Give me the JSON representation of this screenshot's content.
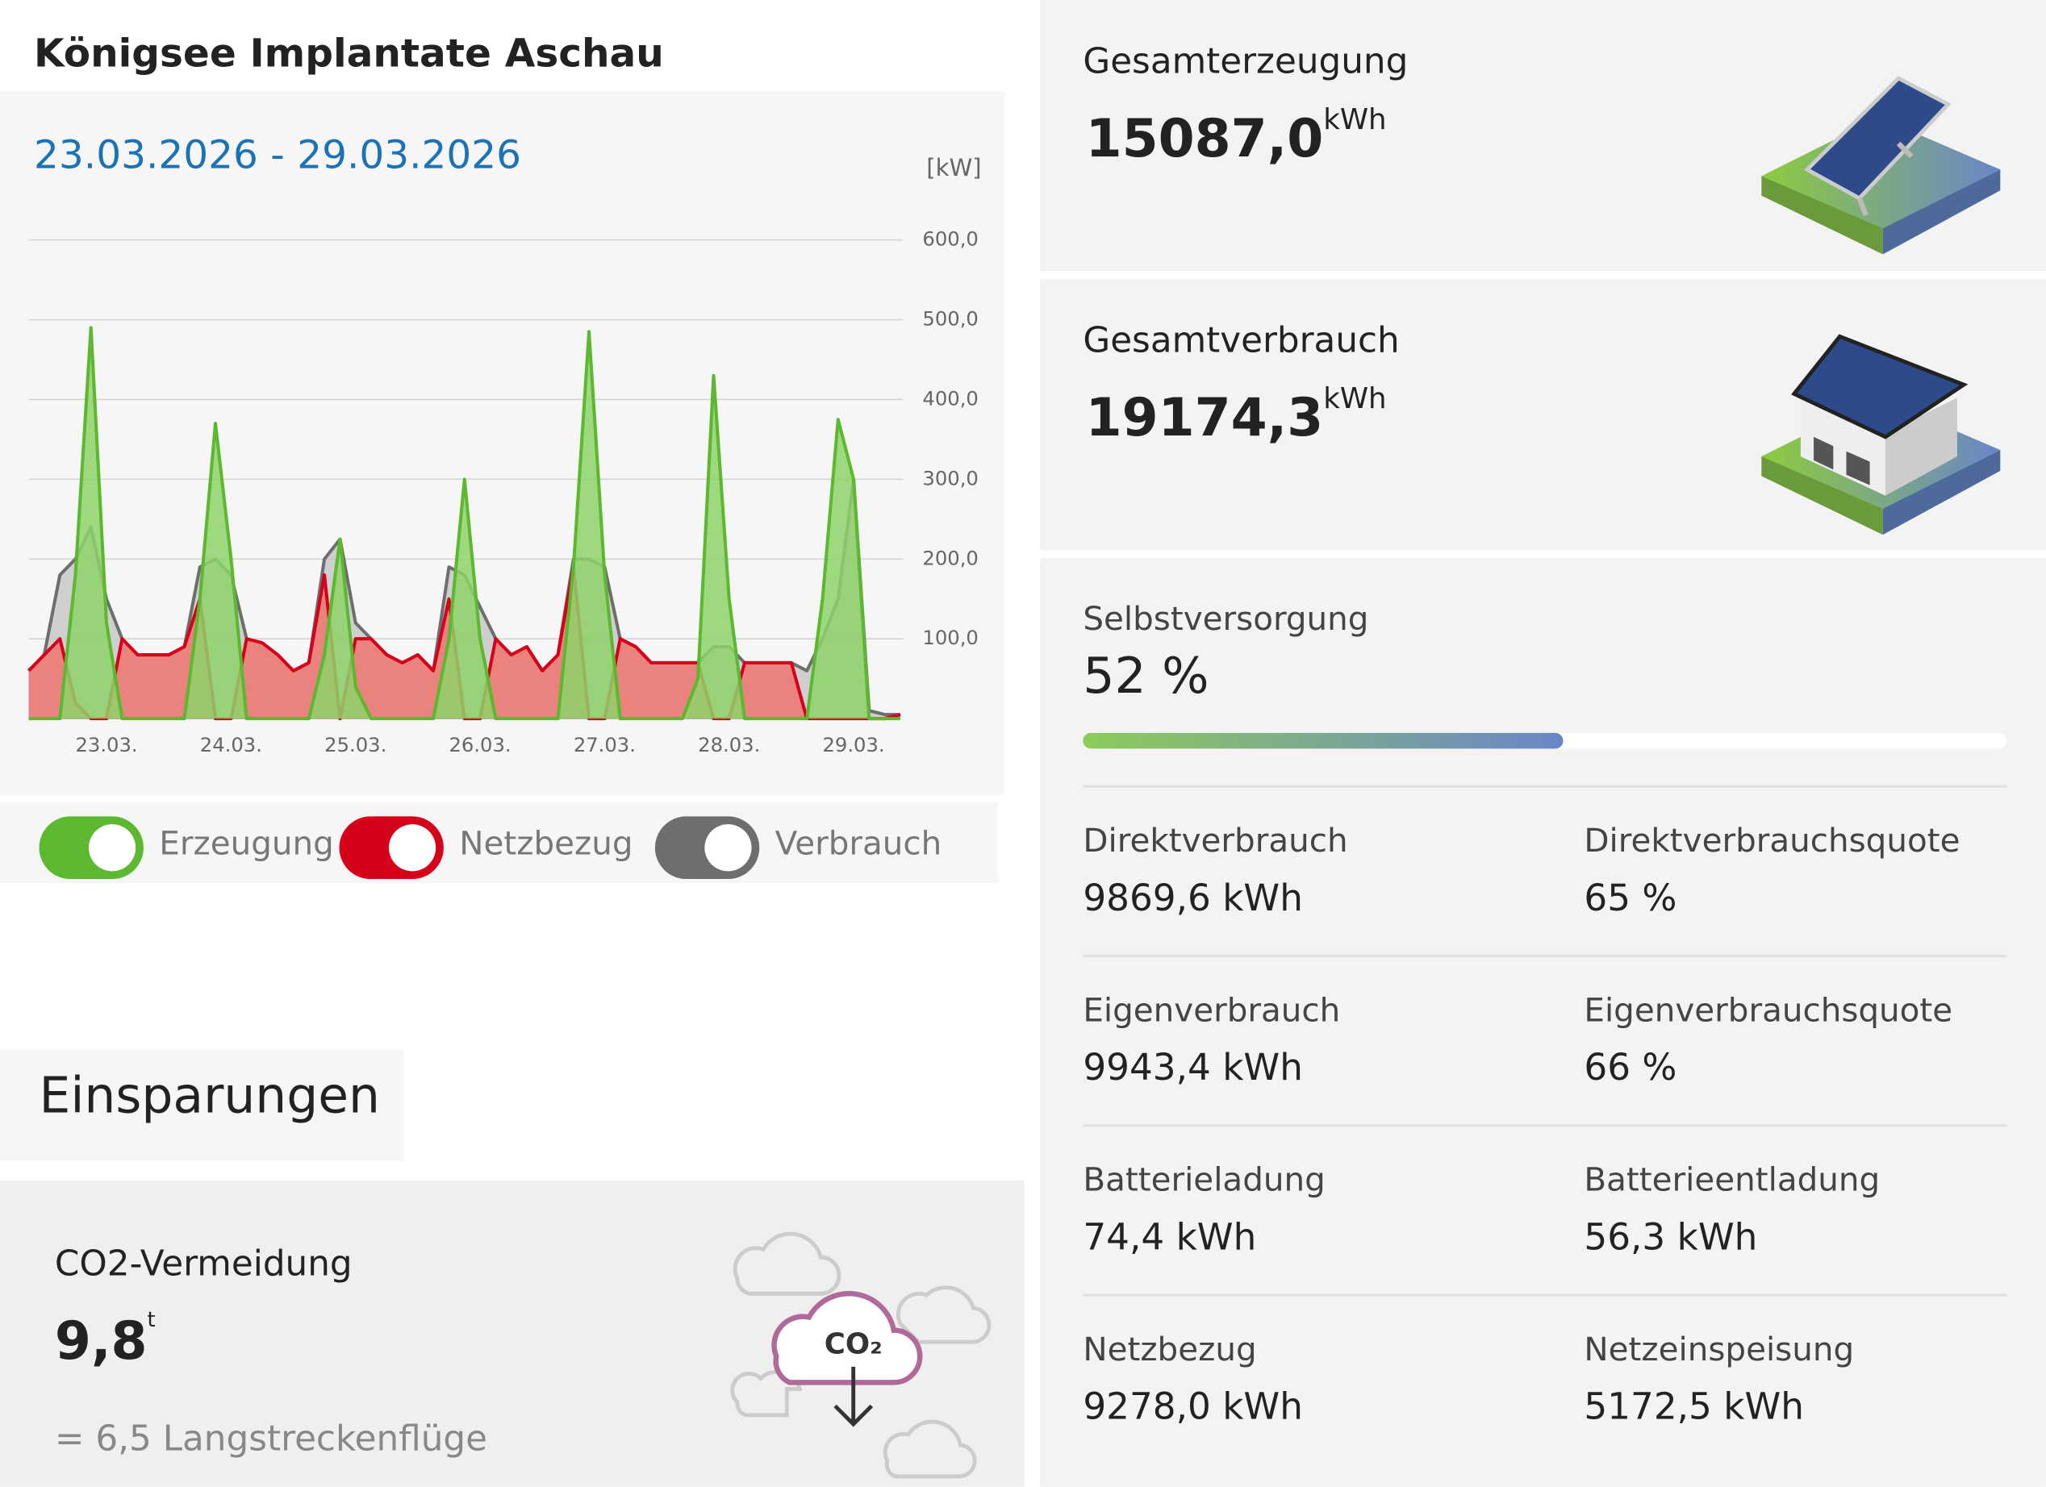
{
  "header": {
    "title": "Königsee Implantate Aschau",
    "date_range": "23.03.2026 - 29.03.2026"
  },
  "chart_data": {
    "type": "area",
    "y_unit": "[kW]",
    "x": [
      0,
      3,
      6,
      9,
      12,
      15,
      18,
      21,
      24,
      27,
      30,
      33,
      36,
      39,
      42,
      45,
      48,
      51,
      54,
      57,
      60,
      63,
      66,
      69,
      72,
      75,
      78,
      81,
      84,
      87,
      90,
      93,
      96,
      99,
      102,
      105,
      108,
      111,
      114,
      117,
      120,
      123,
      126,
      129,
      132,
      135,
      138,
      141,
      144,
      147,
      150,
      153,
      156,
      159,
      162,
      165,
      168
    ],
    "xlim": [
      0,
      168
    ],
    "xticks": [
      {
        "value": 15,
        "label": "23.03."
      },
      {
        "value": 39,
        "label": "24.03."
      },
      {
        "value": 63,
        "label": "25.03."
      },
      {
        "value": 87,
        "label": "26.03."
      },
      {
        "value": 111,
        "label": "27.03."
      },
      {
        "value": 135,
        "label": "28.03."
      },
      {
        "value": 159,
        "label": "29.03."
      }
    ],
    "ylim": [
      0,
      600
    ],
    "yticks": [
      {
        "value": 100,
        "label": "100,0"
      },
      {
        "value": 200,
        "label": "200,0"
      },
      {
        "value": 300,
        "label": "300,0"
      },
      {
        "value": 400,
        "label": "400,0"
      },
      {
        "value": 500,
        "label": "500,0"
      },
      {
        "value": 600,
        "label": "600,0"
      }
    ],
    "grid": true,
    "series": [
      {
        "name": "Verbrauch",
        "color": "#6e6e6e",
        "fill": "#c8c8c8",
        "values": [
          60,
          80,
          180,
          200,
          240,
          150,
          100,
          80,
          80,
          80,
          90,
          190,
          200,
          180,
          100,
          95,
          80,
          60,
          70,
          200,
          225,
          120,
          100,
          80,
          70,
          80,
          60,
          190,
          180,
          140,
          100,
          80,
          90,
          60,
          80,
          200,
          200,
          190,
          100,
          90,
          70,
          70,
          70,
          70,
          90,
          90,
          70,
          70,
          70,
          70,
          60,
          100,
          150,
          300,
          10,
          5,
          5
        ]
      },
      {
        "name": "Netzbezug",
        "color": "#d7001a",
        "fill": "#ee7570",
        "values": [
          60,
          80,
          100,
          20,
          0,
          0,
          100,
          80,
          80,
          80,
          90,
          150,
          0,
          0,
          100,
          95,
          80,
          60,
          70,
          180,
          0,
          100,
          100,
          80,
          70,
          80,
          60,
          150,
          0,
          0,
          100,
          80,
          90,
          60,
          80,
          190,
          0,
          0,
          100,
          90,
          70,
          70,
          70,
          70,
          0,
          0,
          70,
          70,
          70,
          70,
          0,
          0,
          0,
          0,
          0,
          0,
          5
        ]
      },
      {
        "name": "Erzeugung",
        "color": "#5cb82e",
        "fill": "#8ed46a",
        "values": [
          0,
          0,
          0,
          180,
          490,
          120,
          0,
          0,
          0,
          0,
          0,
          150,
          370,
          200,
          0,
          0,
          0,
          0,
          0,
          80,
          225,
          40,
          0,
          0,
          0,
          0,
          0,
          100,
          300,
          100,
          0,
          0,
          0,
          0,
          0,
          190,
          485,
          180,
          0,
          0,
          0,
          0,
          0,
          50,
          430,
          150,
          0,
          0,
          0,
          0,
          0,
          150,
          375,
          300,
          0,
          0,
          0
        ]
      }
    ]
  },
  "legend_order": [
    2,
    1,
    0
  ],
  "savings": {
    "title": "Einsparungen",
    "co2_label": "CO2-Vermeidung",
    "co2_value": "9,8",
    "co2_unit": "t",
    "co2_equivalent": "= 6,5 Langstreckenflüge",
    "icon_text": "CO₂"
  },
  "production": {
    "label": "Gesamterzeugung",
    "value": "15087,0",
    "unit": "kWh"
  },
  "consumption": {
    "label": "Gesamtverbrauch",
    "value": "19174,3",
    "unit": "kWh"
  },
  "self_sufficiency": {
    "label": "Selbstversorgung",
    "value": 52,
    "value_label": "52 %"
  },
  "stats": [
    [
      {
        "label": "Direktverbrauch",
        "value": "9869,6 kWh"
      },
      {
        "label": "Direktverbrauchsquote",
        "value": "65 %"
      }
    ],
    [
      {
        "label": "Eigenverbrauch",
        "value": "9943,4 kWh"
      },
      {
        "label": "Eigenverbrauchsquote",
        "value": "66 %"
      }
    ],
    [
      {
        "label": "Batterieladung",
        "value": "74,4 kWh"
      },
      {
        "label": "Batterieentladung",
        "value": "56,3 kWh"
      }
    ],
    [
      {
        "label": "Netzbezug",
        "value": "9278,0 kWh"
      },
      {
        "label": "Netzeinspeisung",
        "value": "5172,5 kWh"
      }
    ]
  ]
}
